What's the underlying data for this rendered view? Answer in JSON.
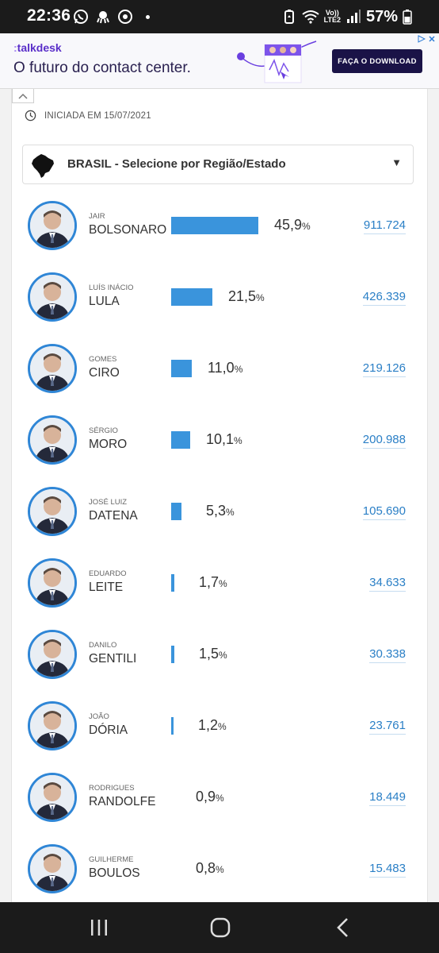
{
  "status_bar": {
    "time": "22:36",
    "lte_top": "Vo))",
    "lte_bottom": "LTE2",
    "battery": "57%"
  },
  "ad": {
    "brand_prefix": ":",
    "brand": "talkdesk",
    "tagline": "O futuro do contact center.",
    "cta": "FAÇA O DOWNLOAD"
  },
  "poll": {
    "started": "INICIADA EM 15/07/2021",
    "region_selector": "BRASIL - Selecione por Região/Estado",
    "candidates": [
      {
        "first": "JAIR",
        "last": "BOLSONARO",
        "pct": "45,9",
        "pct_value": 45.9,
        "votes": "911.724"
      },
      {
        "first": "LUÍS INÁCIO",
        "last": "LULA",
        "pct": "21,5",
        "pct_value": 21.5,
        "votes": "426.339"
      },
      {
        "first": "GOMES",
        "last": "CIRO",
        "pct": "11,0",
        "pct_value": 11.0,
        "votes": "219.126"
      },
      {
        "first": "SÉRGIO",
        "last": "MORO",
        "pct": "10,1",
        "pct_value": 10.1,
        "votes": "200.988"
      },
      {
        "first": "JOSÉ LUIZ",
        "last": "DATENA",
        "pct": "5,3",
        "pct_value": 5.3,
        "votes": "105.690"
      },
      {
        "first": "EDUARDO",
        "last": "LEITE",
        "pct": "1,7",
        "pct_value": 1.7,
        "votes": "34.633"
      },
      {
        "first": "DANILO",
        "last": "GENTILI",
        "pct": "1,5",
        "pct_value": 1.5,
        "votes": "30.338"
      },
      {
        "first": "JOÃO",
        "last": "DÓRIA",
        "pct": "1,2",
        "pct_value": 1.2,
        "votes": "23.761"
      },
      {
        "first": "RODRIGUES",
        "last": "RANDOLFE",
        "pct": "0,9",
        "pct_value": 0.9,
        "votes": "18.449"
      },
      {
        "first": "GUILHERME",
        "last": "BOULOS",
        "pct": "0,8",
        "pct_value": 0.8,
        "votes": "15.483"
      }
    ],
    "pct_symbol": "%",
    "colors": {
      "bar": "#3a94dc",
      "avatar_ring": "#2f86d6",
      "votes": "#2a7fc6"
    }
  }
}
